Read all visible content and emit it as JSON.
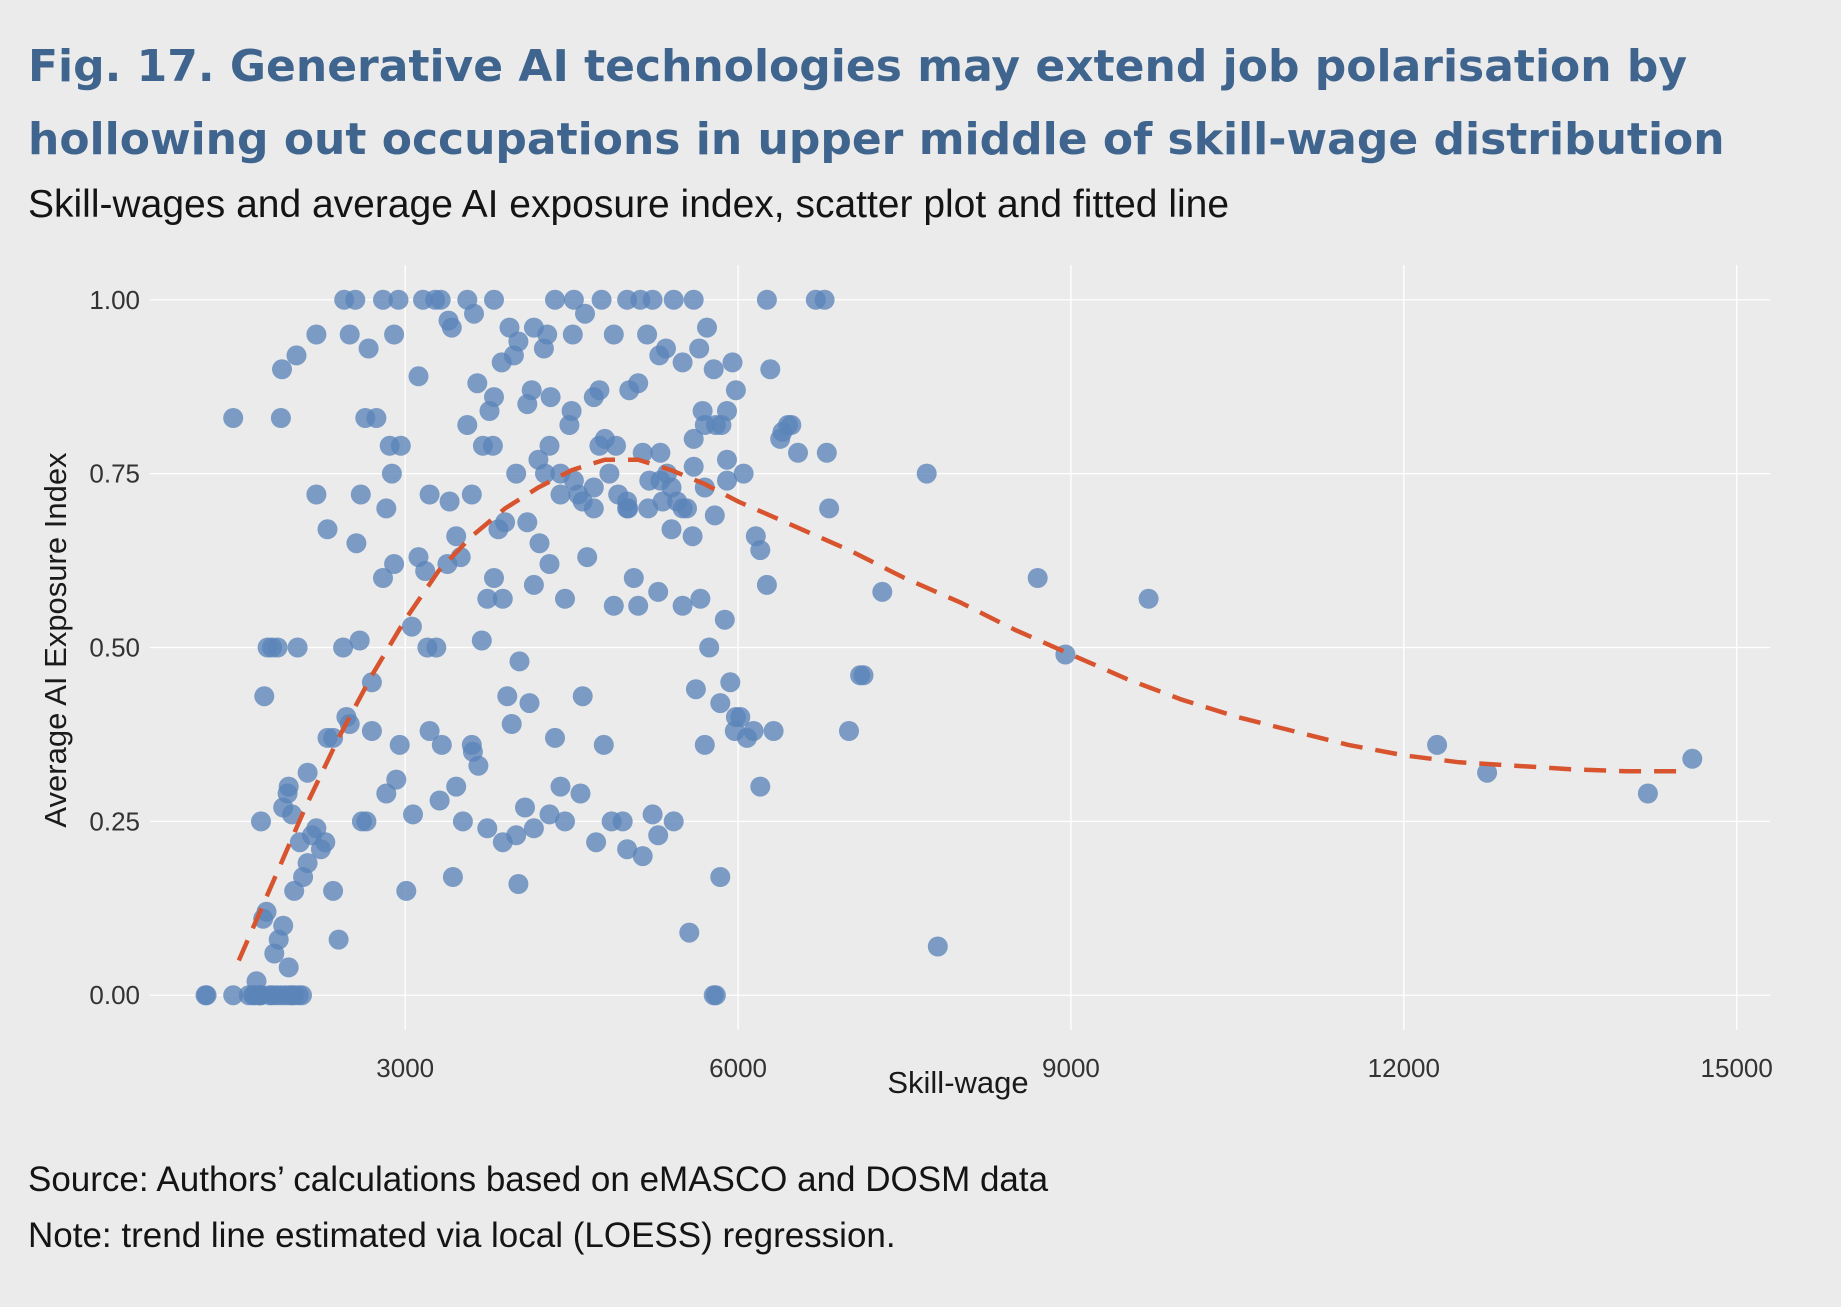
{
  "title": "Fig. 17. Generative AI technologies may extend job polarisation by hollowing out occupations in upper middle of skill-wage distribution",
  "subtitle": "Skill-wages and average AI exposure index, scatter plot and fitted line",
  "source": "Source: Authors’ calculations based on eMASCO and DOSM data",
  "note": "Note: trend line estimated via local (LOESS) regression.",
  "colors": {
    "background": "#ebebeb",
    "points": "#5b84b9",
    "trend": "#d7542f",
    "title": "#3f648d",
    "grid": "#ffffff"
  },
  "chart_data": {
    "type": "scatter",
    "xlabel": "Skill-wage",
    "ylabel": "Average AI Exposure Index",
    "xlim": [
      700,
      15300
    ],
    "ylim": [
      -0.05,
      1.05
    ],
    "x_ticks": [
      3000,
      6000,
      9000,
      12000,
      15000
    ],
    "x_tick_labels": [
      "3000",
      "6000",
      "9000",
      "12000",
      "15000"
    ],
    "y_ticks": [
      0,
      0.25,
      0.5,
      0.75,
      1
    ],
    "y_tick_labels": [
      "0.00",
      "0.25",
      "0.50",
      "0.75",
      "1.00"
    ],
    "grid": true,
    "legend": "none",
    "series": [
      {
        "kind": "points",
        "x": [
          1200,
          1210,
          1450,
          1590,
          1630,
          1640,
          1660,
          1680,
          1690,
          1700,
          1720,
          1750,
          1780,
          1800,
          1820,
          1840,
          1860,
          1880,
          1900,
          1920,
          1950,
          1960,
          1980,
          2000,
          2040,
          2070,
          1450,
          1880,
          1890,
          2020,
          2030,
          2200,
          2450,
          2500,
          2550,
          2640,
          2670,
          2800,
          2860,
          2900,
          2940,
          3120,
          3160,
          3270,
          3320,
          3390,
          3420,
          3560,
          3620,
          3650,
          3760,
          3800,
          3870,
          3940,
          3980,
          4020,
          4140,
          4160,
          4250,
          4280,
          4310,
          4350,
          4510,
          4520,
          4620,
          4750,
          4770,
          4880,
          5000,
          5020,
          5120,
          5180,
          5230,
          5290,
          5350,
          5420,
          5500,
          5600,
          5650,
          5680,
          5720,
          5780,
          5850,
          5900,
          5950,
          5980,
          6050,
          6160,
          6260,
          6290,
          6400,
          6480,
          6540,
          6700,
          6780,
          6800,
          6820,
          1700,
          1730,
          1760,
          1800,
          1850,
          1900,
          1940,
          1980,
          2050,
          2080,
          2120,
          2160,
          2200,
          2240,
          2300,
          2350,
          2400,
          2440,
          2500,
          2560,
          2590,
          2650,
          2700,
          2740,
          2800,
          2830,
          2880,
          2920,
          2960,
          3010,
          3060,
          3120,
          3180,
          3220,
          3280,
          3310,
          3380,
          3430,
          3460,
          3520,
          3560,
          3610,
          3660,
          3690,
          3740,
          3790,
          3840,
          3880,
          3920,
          3960,
          4000,
          4030,
          4080,
          4120,
          4160,
          4210,
          4260,
          4300,
          4350,
          4400,
          4440,
          4480,
          4520,
          4560,
          4600,
          4640,
          4700,
          4750,
          4790,
          4840,
          4880,
          4920,
          4960,
          5010,
          5060,
          5100,
          5140,
          5190,
          5230,
          5280,
          5320,
          5360,
          5400,
          5450,
          5500,
          5540,
          5590,
          5620,
          5660,
          5700,
          5740,
          5790,
          5840,
          5880,
          5930,
          5970,
          6020,
          6080,
          6140,
          6200,
          6260,
          6320,
          6380,
          6450,
          1950,
          2000,
          2120,
          2200,
          2280,
          2350,
          2470,
          2610,
          2700,
          2830,
          2950,
          3070,
          3220,
          3330,
          3460,
          3600,
          3740,
          3880,
          4020,
          4160,
          4300,
          4440,
          4580,
          4720,
          4860,
          5000,
          5140,
          5280,
          5420,
          5560,
          5700,
          5840,
          5980,
          2300,
          2600,
          2900,
          3200,
          3500,
          3800,
          4100,
          4400,
          4700,
          5000,
          5300,
          5600,
          5900,
          6200,
          3400,
          3600,
          3700,
          3800,
          3900,
          4000,
          4100,
          4200,
          4300,
          4400,
          4500,
          4600,
          4700,
          4800,
          4900,
          5000,
          5100,
          5200,
          5300,
          5400,
          5500,
          5600,
          5700,
          5800,
          5900,
          7000,
          7100,
          7130,
          7300,
          7700,
          7800,
          8700,
          8950,
          9700,
          12300,
          12750,
          14200,
          14600,
          5780,
          5800
        ],
        "y": [
          0.0,
          0.0,
          0.0,
          0.0,
          0.0,
          0.0,
          0.02,
          0.0,
          0.0,
          0.0,
          0.11,
          0.12,
          0.0,
          0.0,
          0.06,
          0.0,
          0.08,
          0.0,
          0.1,
          0.0,
          0.04,
          0.0,
          0.0,
          0.0,
          0.0,
          0.0,
          0.83,
          0.83,
          0.9,
          0.92,
          0.5,
          0.95,
          1.0,
          0.95,
          1.0,
          0.83,
          0.93,
          1.0,
          0.79,
          0.95,
          1.0,
          0.89,
          1.0,
          1.0,
          1.0,
          0.97,
          0.96,
          1.0,
          0.98,
          0.88,
          0.84,
          1.0,
          0.91,
          0.96,
          0.92,
          0.94,
          0.87,
          0.96,
          0.93,
          0.95,
          0.86,
          1.0,
          0.95,
          1.0,
          0.98,
          0.87,
          1.0,
          0.95,
          1.0,
          0.87,
          1.0,
          0.95,
          1.0,
          0.92,
          0.93,
          1.0,
          0.91,
          1.0,
          0.93,
          0.84,
          0.96,
          0.9,
          0.82,
          0.84,
          0.91,
          0.87,
          0.75,
          0.66,
          1.0,
          0.9,
          0.81,
          0.82,
          0.78,
          1.0,
          1.0,
          0.78,
          0.7,
          0.25,
          0.43,
          0.5,
          0.5,
          0.5,
          0.27,
          0.29,
          0.26,
          0.22,
          0.17,
          0.19,
          0.23,
          0.72,
          0.21,
          0.37,
          0.15,
          0.08,
          0.5,
          0.39,
          0.65,
          0.51,
          0.25,
          0.45,
          0.83,
          0.6,
          0.7,
          0.75,
          0.31,
          0.79,
          0.15,
          0.53,
          0.63,
          0.61,
          0.72,
          0.5,
          0.28,
          0.62,
          0.17,
          0.66,
          0.25,
          0.82,
          0.35,
          0.33,
          0.51,
          0.57,
          0.79,
          0.67,
          0.57,
          0.43,
          0.39,
          0.23,
          0.48,
          0.27,
          0.42,
          0.59,
          0.65,
          0.75,
          0.62,
          0.37,
          0.3,
          0.57,
          0.82,
          0.74,
          0.72,
          0.43,
          0.63,
          0.7,
          0.79,
          0.36,
          0.75,
          0.56,
          0.72,
          0.25,
          0.7,
          0.6,
          0.56,
          0.78,
          0.7,
          0.26,
          0.58,
          0.71,
          0.75,
          0.67,
          0.71,
          0.56,
          0.7,
          0.66,
          0.44,
          0.57,
          0.82,
          0.5,
          0.69,
          0.42,
          0.54,
          0.45,
          0.38,
          0.4,
          0.37,
          0.38,
          0.3,
          0.59,
          0.38,
          0.8,
          0.82,
          0.3,
          0.15,
          0.32,
          0.24,
          0.22,
          0.37,
          0.4,
          0.25,
          0.38,
          0.29,
          0.36,
          0.26,
          0.38,
          0.36,
          0.3,
          0.36,
          0.24,
          0.22,
          0.16,
          0.24,
          0.26,
          0.25,
          0.29,
          0.22,
          0.25,
          0.21,
          0.2,
          0.23,
          0.25,
          0.09,
          0.36,
          0.17,
          0.4,
          0.67,
          0.72,
          0.62,
          0.5,
          0.63,
          0.6,
          0.68,
          0.72,
          0.73,
          0.71,
          0.74,
          0.8,
          0.77,
          0.64,
          0.71,
          0.72,
          0.79,
          0.86,
          0.68,
          0.75,
          0.85,
          0.77,
          0.79,
          0.75,
          0.84,
          0.71,
          0.86,
          0.8,
          0.79,
          0.7,
          0.88,
          0.74,
          0.78,
          0.73,
          0.7,
          0.76,
          0.73,
          0.82,
          0.74,
          0.38,
          0.46,
          0.46,
          0.58,
          0.75,
          0.07,
          0.6,
          0.49,
          0.57,
          0.36,
          0.32,
          0.29,
          0.34,
          0.0,
          0.0
        ]
      },
      {
        "kind": "trend",
        "x": [
          1500,
          1800,
          2100,
          2400,
          2700,
          3000,
          3300,
          3600,
          3900,
          4200,
          4500,
          4800,
          5100,
          5400,
          5700,
          6000,
          6500,
          7000,
          7500,
          8000,
          8500,
          9000,
          9500,
          10000,
          10500,
          11000,
          11500,
          12000,
          12500,
          13000,
          13500,
          14000,
          14500
        ],
        "y": [
          0.05,
          0.16,
          0.27,
          0.37,
          0.46,
          0.54,
          0.61,
          0.66,
          0.7,
          0.73,
          0.755,
          0.77,
          0.77,
          0.755,
          0.735,
          0.71,
          0.675,
          0.64,
          0.6,
          0.565,
          0.525,
          0.49,
          0.455,
          0.425,
          0.4,
          0.38,
          0.36,
          0.345,
          0.335,
          0.33,
          0.325,
          0.322,
          0.322
        ]
      }
    ]
  }
}
